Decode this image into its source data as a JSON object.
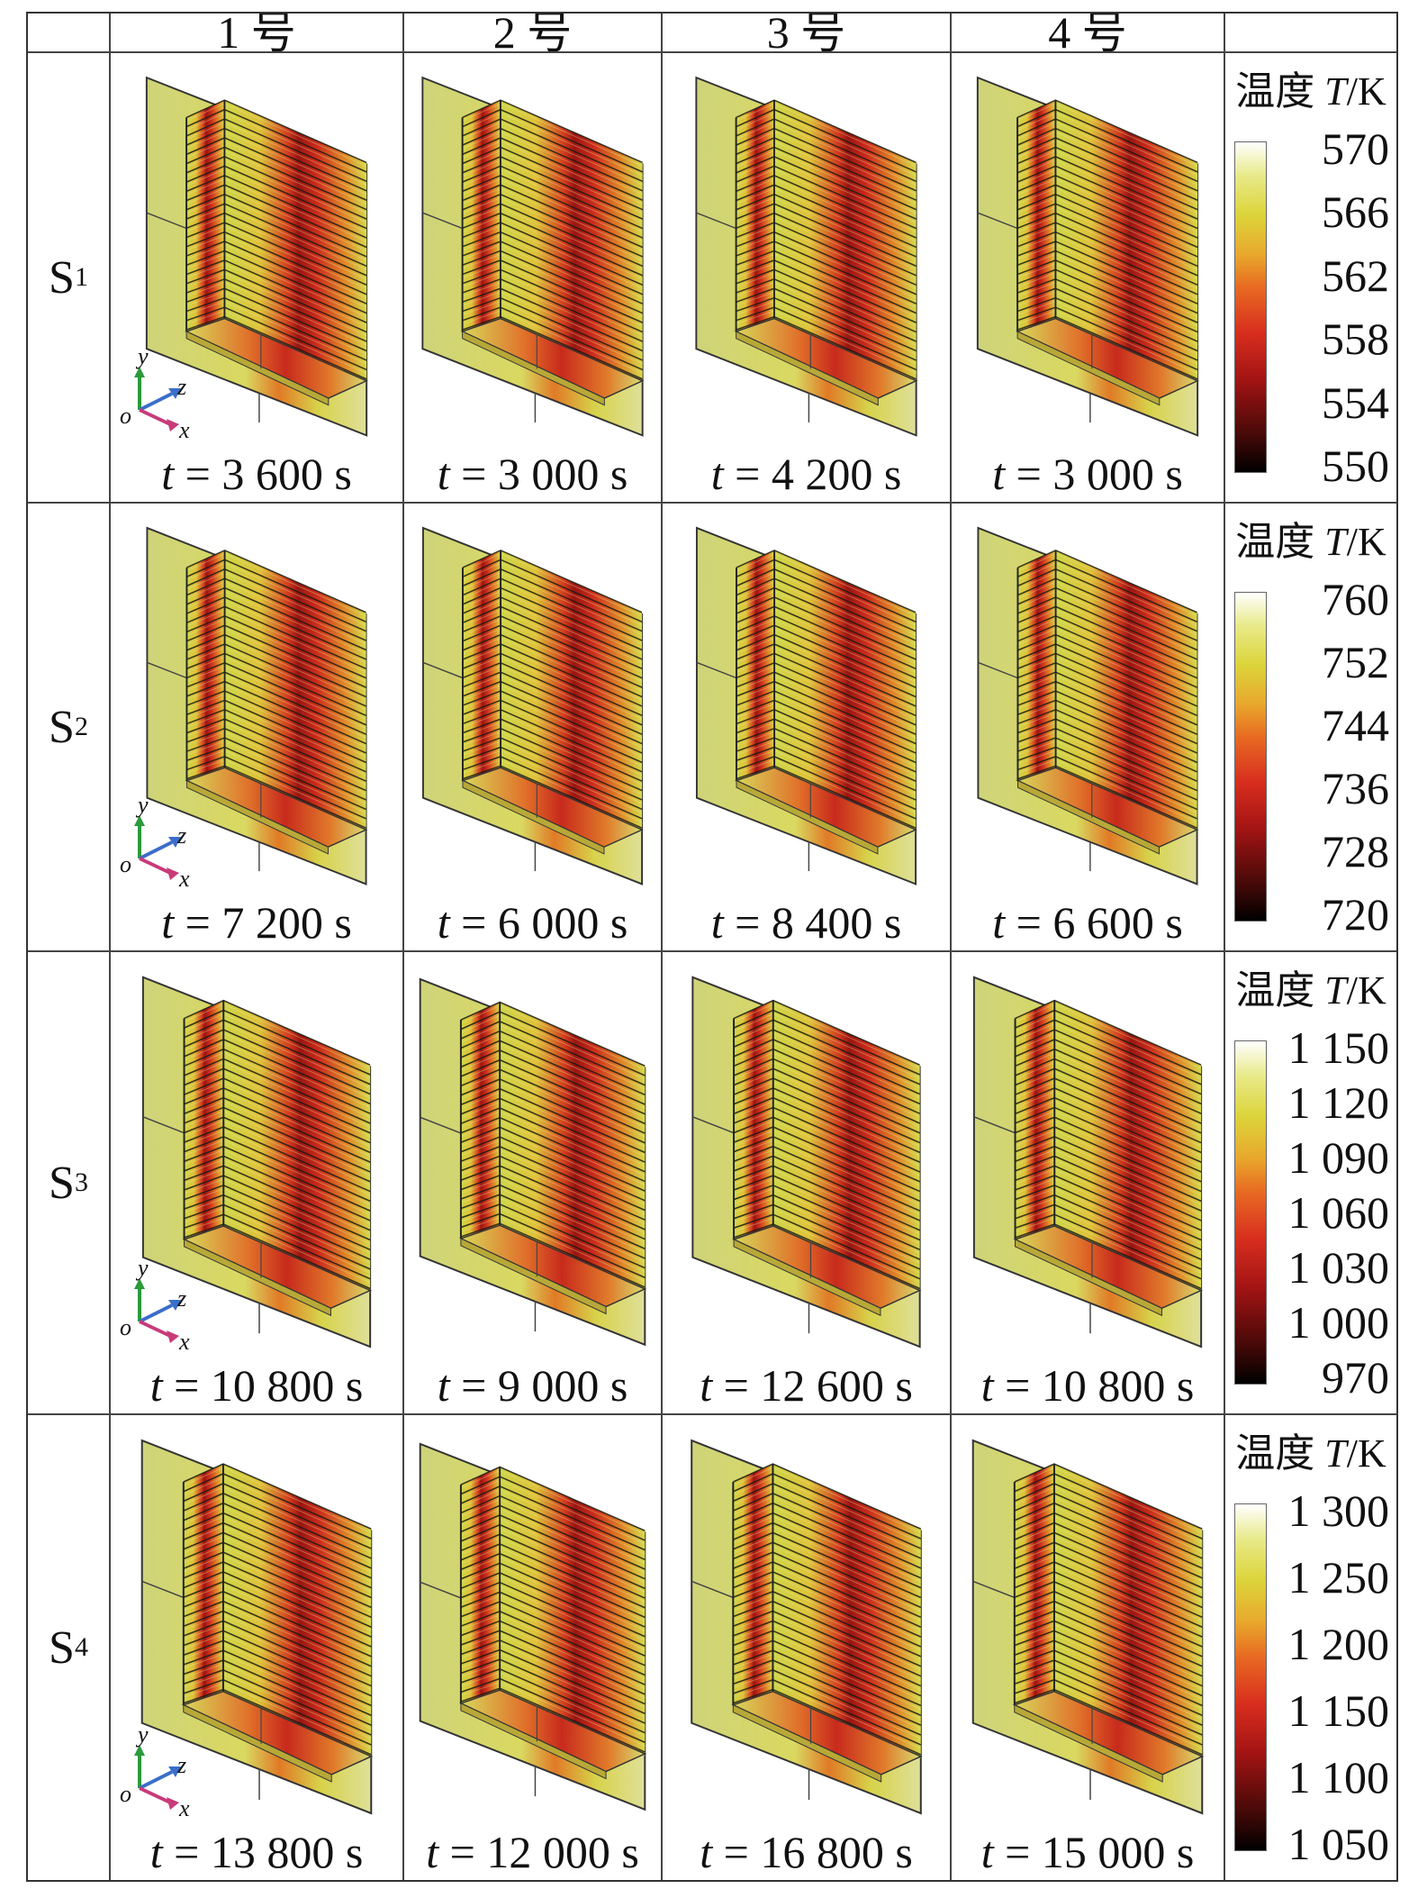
{
  "header": {
    "corner": "",
    "columns": [
      "1 号",
      "2 号",
      "3 号",
      "4 号"
    ],
    "legend": ""
  },
  "axes_labels": {
    "y": "y",
    "z": "z",
    "x": "x",
    "o": "o"
  },
  "rows": [
    {
      "label": {
        "main": "S",
        "sub": "1"
      },
      "times": [
        "3 600 s",
        "3 000 s",
        "4 200 s",
        "3 000 s"
      ],
      "colorbar": {
        "title_cn": "温度",
        "title_var": "T",
        "title_unit": "/K",
        "ticks": [
          "570",
          "566",
          "562",
          "558",
          "554",
          "550"
        ]
      }
    },
    {
      "label": {
        "main": "S",
        "sub": "2"
      },
      "times": [
        "7 200 s",
        "6 000 s",
        "8 400 s",
        "6 600 s"
      ],
      "colorbar": {
        "title_cn": "温度",
        "title_var": "T",
        "title_unit": "/K",
        "ticks": [
          "760",
          "752",
          "744",
          "736",
          "728",
          "720"
        ]
      }
    },
    {
      "label": {
        "main": "S",
        "sub": "3"
      },
      "times": [
        "10 800 s",
        "9 000 s",
        "12 600 s",
        "10 800 s"
      ],
      "colorbar": {
        "title_cn": "温度",
        "title_var": "T",
        "title_unit": "/K",
        "ticks": [
          "1 150",
          "1 120",
          "1 090",
          "1 060",
          "1 030",
          "1 000",
          "970"
        ]
      }
    },
    {
      "label": {
        "main": "S",
        "sub": "4"
      },
      "times": [
        "13 800 s",
        "12 000 s",
        "16 800 s",
        "15 000 s"
      ],
      "colorbar": {
        "title_cn": "温度",
        "title_var": "T",
        "title_unit": "/K",
        "ticks": [
          "1 300",
          "1 250",
          "1 200",
          "1 150",
          "1 100",
          "1 050"
        ]
      }
    }
  ],
  "time_prefix": "t",
  "time_eq": " = ",
  "colors": {
    "cool": "#d8dc58",
    "warm": "#e07a26",
    "hot": "#b8191a",
    "plate": "#d4d88a"
  }
}
